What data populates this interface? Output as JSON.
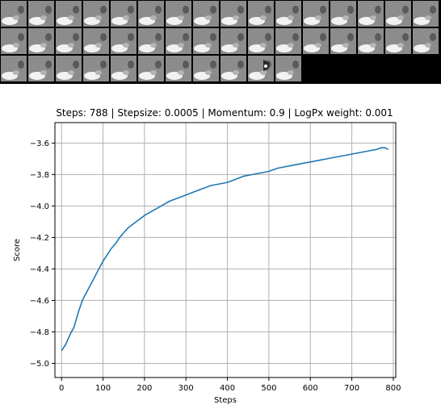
{
  "thumbnail_strip": {
    "rows": [
      16,
      16,
      11
    ],
    "tile_background": "#8c8c8c",
    "empty_background": "#000000",
    "marked_tile_index": 41
  },
  "chart_data": {
    "type": "line",
    "title": "Steps: 788 | Stepsize: 0.0005 | Momentum: 0.9 | LogPx weight: 0.001",
    "xlabel": "Steps",
    "ylabel": "Score",
    "xlim": [
      -16,
      806
    ],
    "ylim": [
      -5.09,
      -3.47
    ],
    "xticks": [
      0,
      100,
      200,
      300,
      400,
      500,
      600,
      700,
      800
    ],
    "yticks": [
      -5.0,
      -4.8,
      -4.6,
      -4.4,
      -4.2,
      -4.0,
      -3.8,
      -3.6
    ],
    "grid": true,
    "series": [
      {
        "color": "#1f77b4",
        "x": [
          0,
          10,
          20,
          30,
          40,
          50,
          60,
          70,
          80,
          90,
          100,
          110,
          120,
          130,
          140,
          150,
          160,
          170,
          180,
          190,
          200,
          220,
          240,
          260,
          280,
          300,
          320,
          340,
          360,
          380,
          400,
          420,
          440,
          460,
          480,
          500,
          520,
          540,
          560,
          580,
          600,
          620,
          640,
          660,
          680,
          700,
          720,
          740,
          760,
          770,
          780,
          788
        ],
        "y": [
          -4.92,
          -4.88,
          -4.82,
          -4.77,
          -4.68,
          -4.6,
          -4.55,
          -4.5,
          -4.45,
          -4.4,
          -4.35,
          -4.31,
          -4.27,
          -4.24,
          -4.2,
          -4.17,
          -4.14,
          -4.12,
          -4.1,
          -4.08,
          -4.06,
          -4.03,
          -4.0,
          -3.97,
          -3.95,
          -3.93,
          -3.91,
          -3.89,
          -3.87,
          -3.86,
          -3.85,
          -3.83,
          -3.81,
          -3.8,
          -3.79,
          -3.78,
          -3.76,
          -3.75,
          -3.74,
          -3.73,
          -3.72,
          -3.71,
          -3.7,
          -3.69,
          -3.68,
          -3.67,
          -3.66,
          -3.65,
          -3.64,
          -3.63,
          -3.63,
          -3.64
        ]
      }
    ]
  }
}
